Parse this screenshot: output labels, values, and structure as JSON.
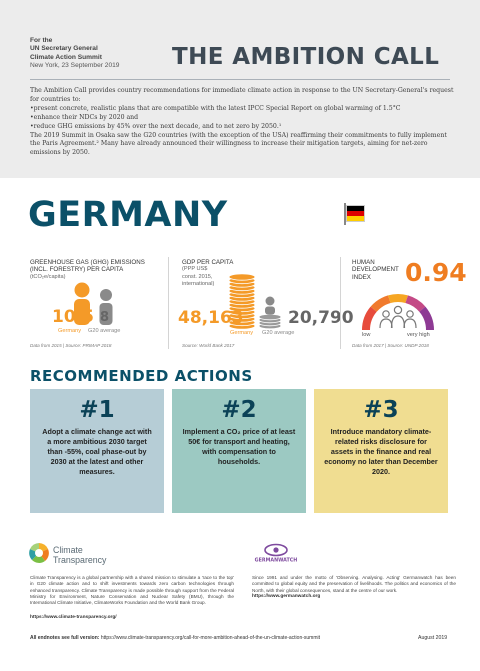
{
  "header": {
    "org_line1": "For the",
    "org_line2": "UN Secretary General",
    "org_line3": "Climate Action Summit",
    "org_date": "New York, 23 September 2019",
    "title": "THE AMBITION CALL"
  },
  "intro": {
    "p1": "The Ambition Call provides country recommendations for immediate climate action in response to the UN Secretary-General's request for countries to:",
    "bullets": [
      "present concrete, realistic plans that are compatible with the latest IPCC Special Report on global warming of 1.5°C",
      "enhance their NDCs by 2020 and",
      "reduce GHG emissions by 45% over the next decade, and to net zero by 2050.¹"
    ],
    "p2": "The 2019 Summit in Osaka saw the G20 countries (with the exception of the USA) reaffirming their commitments to fully implement the Paris Agreement.² Many have already announced their willingness to increase their mitigation targets, aiming for net-zero emissions by 2050."
  },
  "country": {
    "name": "GERMANY",
    "flag_colors": [
      "#000000",
      "#dd0000",
      "#ffce00"
    ]
  },
  "stats": {
    "ghg": {
      "title1": "GREENHOUSE GAS (GHG) EMISSIONS",
      "title2": "(INCL. FORESTRY) PER CAPITA",
      "unit": "(tCO₂e/capita)",
      "value": "10.5",
      "value_label": "Germany",
      "avg": "8",
      "avg_label": "G20 average",
      "source": "Data from 2015 | Source: PRIMAP 2018"
    },
    "gdp": {
      "title": "GDP PER CAPITA",
      "unit1": "(PPP US$",
      "unit2": "const. 2015,",
      "unit3": "international)",
      "value": "48,163",
      "value_label": "Germany",
      "avg": "20,790",
      "avg_label": "G20 average",
      "source": "Source: World Bank 2017"
    },
    "hdi": {
      "title1": "HUMAN",
      "title2": "DEVELOPMENT",
      "title3": "INDEX",
      "value": "0.94",
      "low_label": "low",
      "high_label": "very high",
      "source": "Data from 2017 | Source: UNDP 2018"
    }
  },
  "actions": {
    "title": "RECOMMENDED ACTIONS",
    "items": [
      {
        "num": "#1",
        "text": "Adopt a climate change act with a more ambitious 2030 target than -55%, coal phase-out by 2030 at the latest and other measures.",
        "color": "#b6cdd6"
      },
      {
        "num": "#2",
        "text": "Implement a CO₂ price of at least 50€ for transport and heating, with compensation to households.",
        "color": "#9cc9c2"
      },
      {
        "num": "#3",
        "text": "Introduce mandatory climate-related risks disclosure for assets in the finance and real economy no later than December 2020.",
        "color": "#f0dd91"
      }
    ]
  },
  "partners": {
    "ct_name1": "Climate",
    "ct_name2": "Transparency",
    "ct_desc": "Climate Transparency is a global partnership with a shared mission to stimulate a 'race to the top' in G20 climate action and to shift investments towards zero carbon technologies through enhanced transparency. Climate Transparency is made possible through support from the Federal Ministry for Environment, Nature Conservation and Nuclear Safety (BMU), through the International Climate Initiative, ClimateWorks Foundation and the World Bank Group.",
    "ct_url": "https://www.climate-transparency.org/",
    "gw_name": "GERMANWATCH",
    "gw_desc": "Since 1991 and under the motto of 'Observing. Analysing. Acting' Germanwatch has been committed to global equity and the preservation of livelihoods. The politics and economics of the North, with their global consequences, stand at the centre of our work.",
    "gw_url": "https://www.germanwatch.org"
  },
  "footer": {
    "label": "All endnotes see full version:",
    "url": "https://www.climate-transparency.org/call-for-more-ambition-ahead-of-the-un-climate-action-summit",
    "date": "August 2019"
  }
}
